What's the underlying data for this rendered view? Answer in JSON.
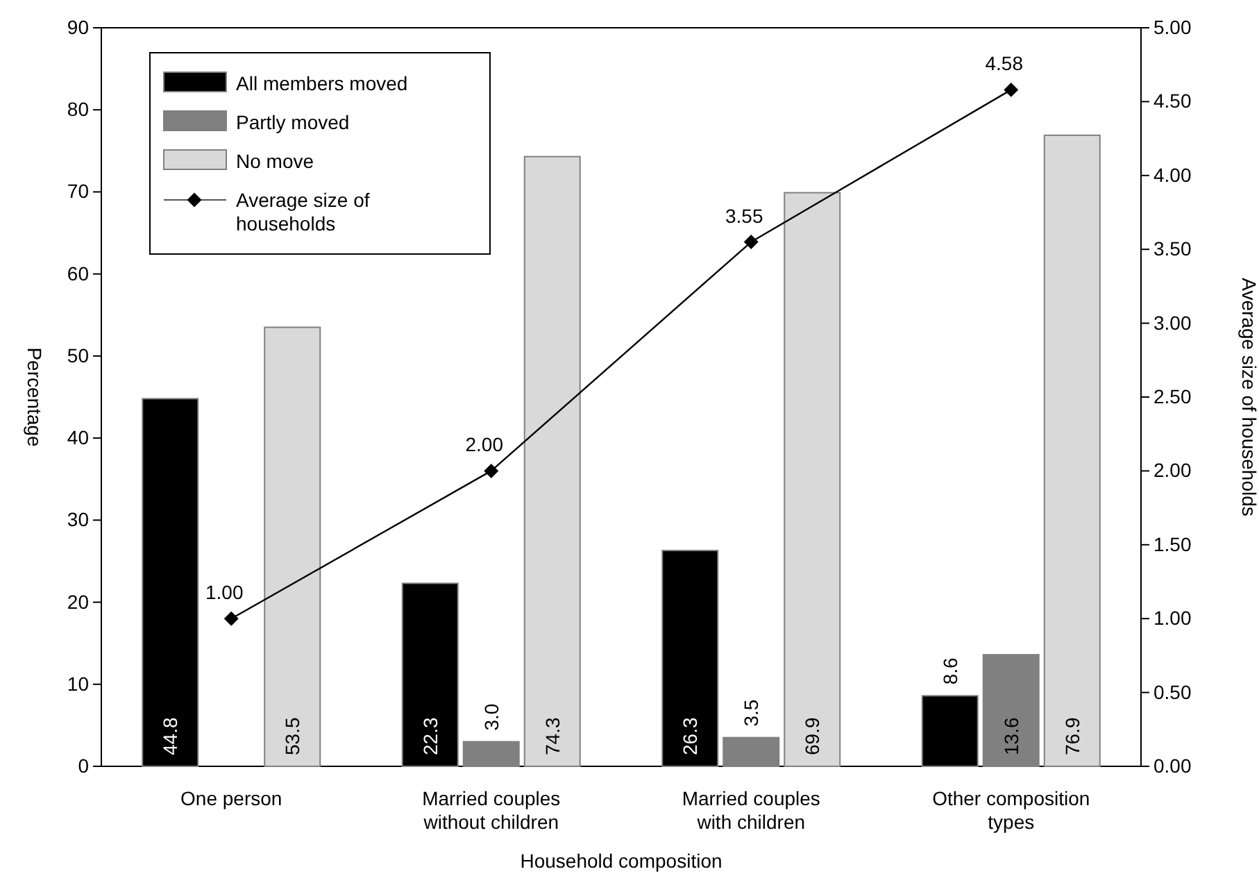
{
  "chart_data": {
    "type": "bar",
    "xlabel": "Household composition",
    "ylabel": "Percentage",
    "y2label": "Average size of households",
    "categories": [
      "One person",
      "Married couples\nwithout children",
      "Married couples\nwith children",
      "Other composition\ntypes"
    ],
    "series": [
      {
        "name": "All members moved",
        "color": "#000000",
        "values": [
          44.8,
          22.3,
          26.3,
          8.6
        ],
        "value_labels": [
          "44.8",
          "22.3",
          "26.3",
          "8.6"
        ]
      },
      {
        "name": "Partly moved",
        "color": "#808080",
        "values": [
          null,
          3.0,
          3.5,
          13.6
        ],
        "value_labels": [
          null,
          "3.0",
          "3.5",
          "13.6"
        ]
      },
      {
        "name": "No move",
        "color": "#d9d9d9",
        "values": [
          53.5,
          74.3,
          69.9,
          76.9
        ],
        "value_labels": [
          "53.5",
          "74.3",
          "69.9",
          "76.9"
        ]
      },
      {
        "name": "Average size of households",
        "type": "line",
        "axis": "y2",
        "color": "#000000",
        "values": [
          1.0,
          2.0,
          3.55,
          4.58
        ],
        "value_labels": [
          "1.00",
          "2.00",
          "3.55",
          "4.58"
        ]
      }
    ],
    "ylim": [
      0,
      90
    ],
    "yticks": [
      0,
      10,
      20,
      30,
      40,
      50,
      60,
      70,
      80,
      90
    ],
    "y2lim": [
      0,
      5
    ],
    "y2ticks": [
      {
        "value": 0,
        "label": "0.00"
      },
      {
        "value": 0.5,
        "label": "0.50"
      },
      {
        "value": 1,
        "label": "1.00"
      },
      {
        "value": 1.5,
        "label": "1.50"
      },
      {
        "value": 2,
        "label": "2.00"
      },
      {
        "value": 2.5,
        "label": "2.50"
      },
      {
        "value": 3,
        "label": "3.00"
      },
      {
        "value": 3.5,
        "label": "3.50"
      },
      {
        "value": 4,
        "label": "4.00"
      },
      {
        "value": 4.5,
        "label": "4.50"
      },
      {
        "value": 5,
        "label": "5.00"
      }
    ],
    "marker": "diamond",
    "legend": "top left",
    "grid": false
  }
}
